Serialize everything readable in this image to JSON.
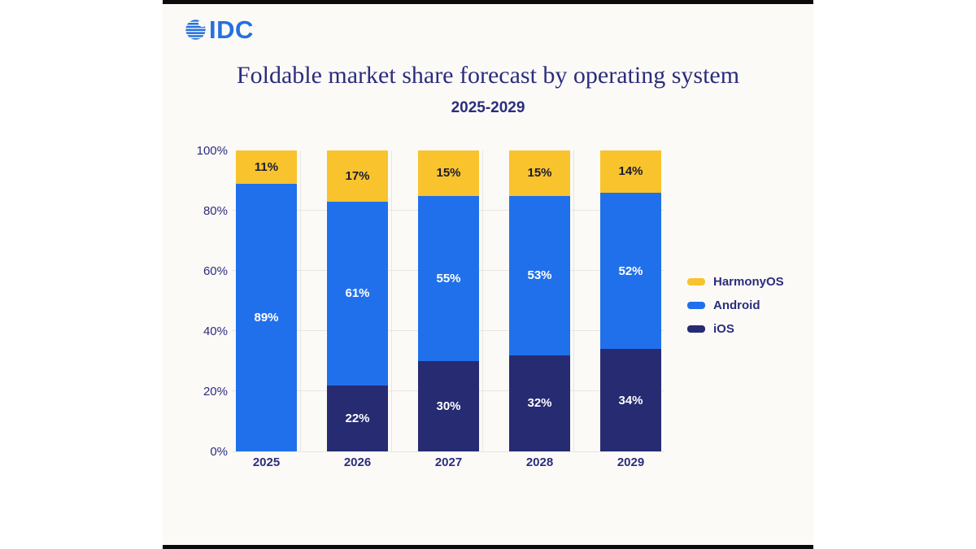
{
  "colors": {
    "page_bg": "#FFFFFF",
    "panel_bg": "#FCFAF7",
    "frame_bar": "#0B0B0B",
    "logo_blue": "#2471E0",
    "heading_navy": "#2B2D7E",
    "grid_line": "#E9E6E2",
    "harmonyos_yellow": "#F9C32E",
    "android_blue": "#2170EB",
    "ios_navy": "#262B72"
  },
  "header": {
    "logo_text": "IDC",
    "title": "Foldable market share forecast by operating system",
    "subtitle": "2025-2029"
  },
  "chart_data": {
    "type": "bar",
    "stacked": true,
    "title": "Foldable market share forecast by operating system",
    "subtitle": "2025-2029",
    "categories": [
      "2025",
      "2026",
      "2027",
      "2028",
      "2029"
    ],
    "series": [
      {
        "name": "iOS",
        "color": "#262B72",
        "label_color": "#FFFFFF",
        "values": [
          0,
          22,
          30,
          32,
          34
        ]
      },
      {
        "name": "Android",
        "color": "#2170EB",
        "label_color": "#FFFFFF",
        "values": [
          89,
          61,
          55,
          53,
          52
        ]
      },
      {
        "name": "HarmonyOS",
        "color": "#F9C32E",
        "label_color": "#1A1C30",
        "values": [
          11,
          17,
          15,
          15,
          14
        ]
      }
    ],
    "value_suffix": "%",
    "y_ticks": [
      "0%",
      "20%",
      "40%",
      "60%",
      "80%",
      "100%"
    ],
    "ylim": [
      0,
      100
    ],
    "grid": true,
    "legend_position": "right",
    "legend": [
      "HarmonyOS",
      "Android",
      "iOS"
    ]
  }
}
